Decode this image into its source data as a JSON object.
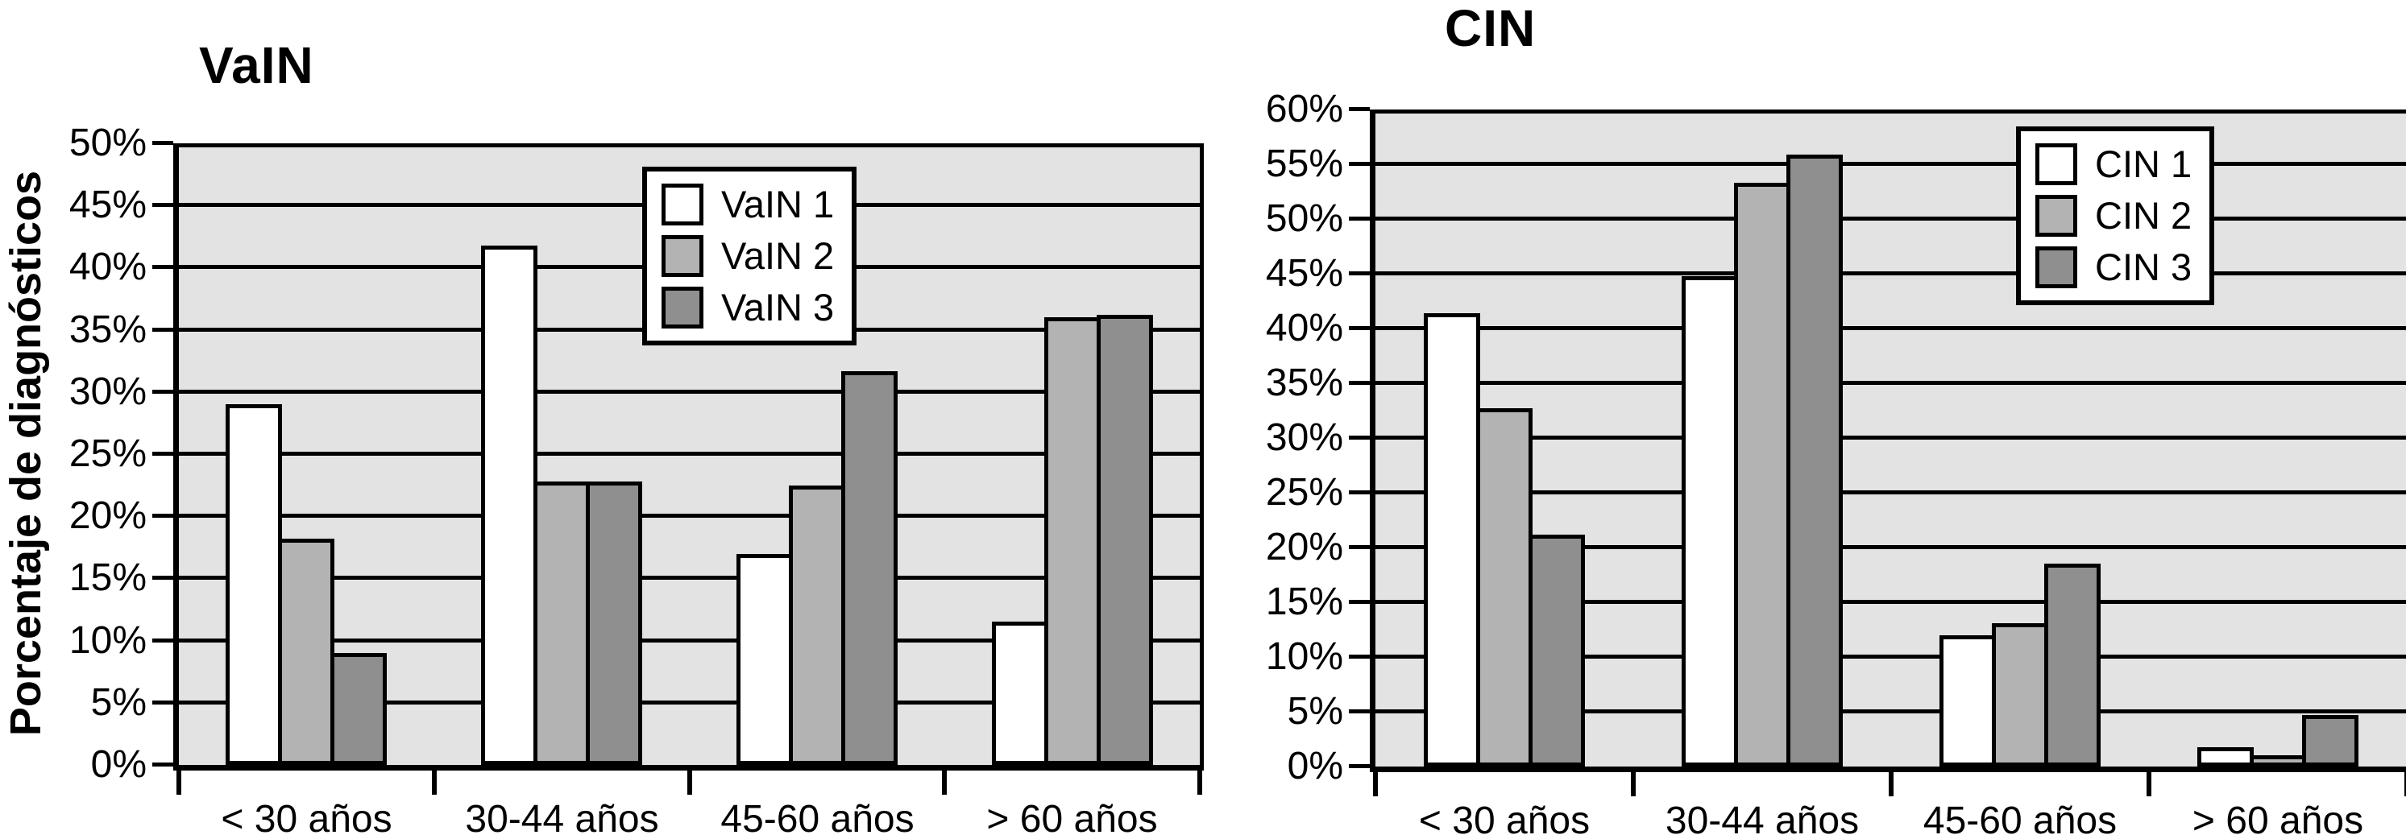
{
  "figure": {
    "background": "#ffffff",
    "line_color": "#000000",
    "plot_background": "#e3e3e3"
  },
  "chart_data": [
    {
      "type": "bar",
      "title": "VaIN",
      "ylabel": "Porcentaje de diagnósticos",
      "xlabel": "",
      "categories": [
        "< 30 años",
        "30-44 años",
        "45-60 años",
        "> 60 años"
      ],
      "series": [
        {
          "name": "VaIN 1",
          "color": "#ffffff",
          "values": [
            29,
            41.8,
            17,
            11.5
          ]
        },
        {
          "name": "VaIN 2",
          "color": "#b3b3b3",
          "values": [
            18.2,
            22.8,
            22.5,
            36
          ]
        },
        {
          "name": "VaIN 3",
          "color": "#8f8f8f",
          "values": [
            9,
            22.8,
            31.7,
            36.2
          ]
        }
      ],
      "ylim": [
        0,
        50
      ],
      "ytick_step": 5,
      "yticks": [
        "0%",
        "5%",
        "10%",
        "15%",
        "20%",
        "25%",
        "30%",
        "35%",
        "40%",
        "45%",
        "50%"
      ],
      "grid": true,
      "legend_position": "top-center",
      "plot_bg": "#e3e3e3",
      "line_color": "#000000"
    },
    {
      "type": "bar",
      "title": "CIN",
      "ylabel": "",
      "xlabel": "",
      "categories": [
        "< 30 años",
        "30-44 años",
        "45-60 años",
        "> 60 años"
      ],
      "series": [
        {
          "name": "CIN 1",
          "color": "#ffffff",
          "values": [
            41.4,
            44.8,
            12,
            1.8
          ]
        },
        {
          "name": "CIN 2",
          "color": "#b3b3b3",
          "values": [
            32.7,
            53.3,
            13.1,
            1
          ]
        },
        {
          "name": "CIN 3",
          "color": "#8f8f8f",
          "values": [
            21.2,
            55.9,
            18.5,
            4.7
          ]
        }
      ],
      "ylim": [
        0,
        60
      ],
      "ytick_step": 5,
      "yticks": [
        "0%",
        "5%",
        "10%",
        "15%",
        "20%",
        "25%",
        "30%",
        "35%",
        "40%",
        "45%",
        "50%",
        "55%",
        "60%"
      ],
      "grid": true,
      "legend_position": "top-right",
      "plot_bg": "#e3e3e3",
      "line_color": "#000000"
    }
  ]
}
